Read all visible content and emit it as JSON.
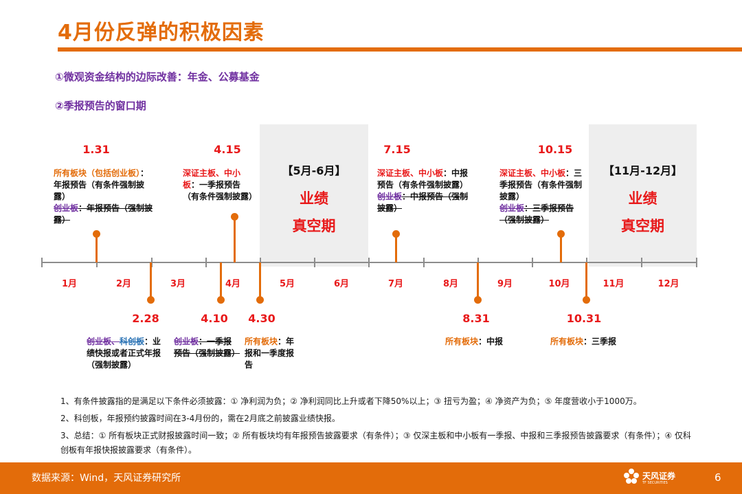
{
  "title": "4月份反弹的积极因素",
  "points": [
    "①微观资金结构的边际改善：年金、公募基金",
    "②季报预告的窗口期"
  ],
  "blank_periods": [
    {
      "bracket": "【5月-6月】",
      "line1": "业绩",
      "line2": "真空期"
    },
    {
      "bracket": "【11月-12月】",
      "line1": "业绩",
      "line2": "真空期"
    }
  ],
  "months": [
    "1月",
    "2月",
    "3月",
    "4月",
    "5月",
    "6月",
    "7月",
    "8月",
    "9月",
    "10月",
    "11月",
    "12月"
  ],
  "events_above": [
    {
      "date": "1.31",
      "a": "所有板块（包括创业板）",
      "b": "：年报预告（有条件强制披露）",
      "c": "创业板",
      "d": "：年报预告（强制披露）"
    },
    {
      "date": "4.15",
      "a": "深证主板、中小板",
      "b": "：一季报预告（有条件强制披露）"
    },
    {
      "date": "7.15",
      "a": "深证主板、中小板",
      "b": "：中报预告（有条件强制披露）",
      "c": "创业板",
      "d": "：中报预告（强制披露）"
    },
    {
      "date": "10.15",
      "a": "深证主板、中小板",
      "b": "：三季报预告（有条件强制披露）",
      "c": "创业板",
      "d": "：三季报预告（强制披露）"
    }
  ],
  "events_below": [
    {
      "date": "2.28",
      "a": "创业板、",
      "a2": "科创板",
      "b": "：业绩快报或者正式年报（强制披露）"
    },
    {
      "date": "4.10",
      "a": "创业板",
      "b": "：一季报预告（强制披露）"
    },
    {
      "date": "4.30",
      "a": "所有板块",
      "b": "：年报和一季度报告"
    },
    {
      "date": "8.31",
      "a": "所有板块",
      "b": "：中报"
    },
    {
      "date": "10.31",
      "a": "所有板块",
      "b": "：三季报"
    }
  ],
  "footnotes": [
    "1、有条件披露指的是满足以下条件必须披露：① 净利润为负；② 净利润同比上升或者下降50%以上；③ 扭亏为盈；④ 净资产为负；⑤ 年度营收小于1000万。",
    "2、科创板，年报预约披露时间在3-4月份的，需在2月底之前披露业绩快报。",
    "3、总结：① 所有板块正式财报披露时间一致；② 所有板块均有年报预告披露要求（有条件）；③ 仅深主板和中小板有一季报、中报和三季报预告披露要求（有条件）；④ 仅科创板有年报快报披露要求（有条件）。"
  ],
  "footer": {
    "source": "数据来源：Wind，天风证券研究所",
    "logo": "天风证券",
    "logo_sub": "TF SECURITIES",
    "page": "6"
  },
  "colors": {
    "accent": "#e36c0a",
    "highlight": "#e8191a",
    "point": "#7030a0",
    "axis": "#8c8c8c",
    "shade": "#eeeeee"
  }
}
